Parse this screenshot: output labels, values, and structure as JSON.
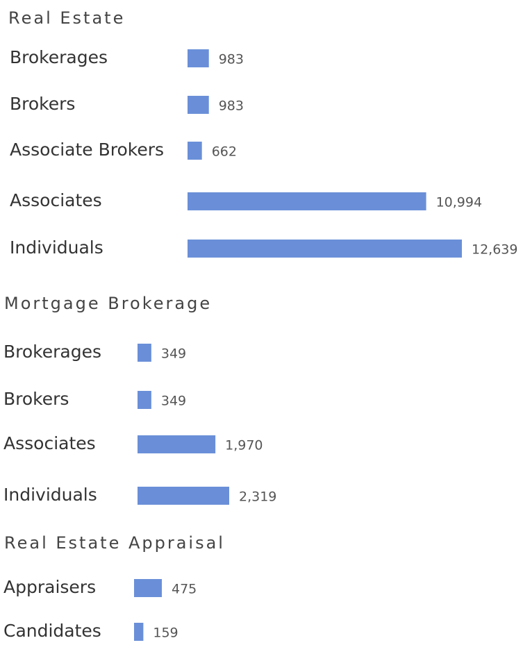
{
  "chart_data": [
    {
      "type": "bar",
      "orientation": "horizontal",
      "title": "Real Estate",
      "categories": [
        "Brokerages",
        "Brokers",
        "Associate Brokers",
        "Associates",
        "Individuals"
      ],
      "values": [
        983,
        983,
        662,
        10994,
        12639
      ],
      "value_labels": [
        "983",
        "983",
        "662",
        "10,994",
        "12,639"
      ],
      "color": "#6a8fd8"
    },
    {
      "type": "bar",
      "orientation": "horizontal",
      "title": "Mortgage Brokerage",
      "categories": [
        "Brokerages",
        "Brokers",
        "Associates",
        "Individuals"
      ],
      "values": [
        349,
        349,
        1970,
        2319
      ],
      "value_labels": [
        "349",
        "349",
        "1,970",
        "2,319"
      ],
      "color": "#6a8fd8"
    },
    {
      "type": "bar",
      "orientation": "horizontal",
      "title": "Real Estate Appraisal",
      "categories": [
        "Appraisers",
        "Candidates"
      ],
      "values": [
        475,
        159
      ],
      "value_labels": [
        "475",
        "159"
      ],
      "color": "#6a8fd8"
    }
  ]
}
